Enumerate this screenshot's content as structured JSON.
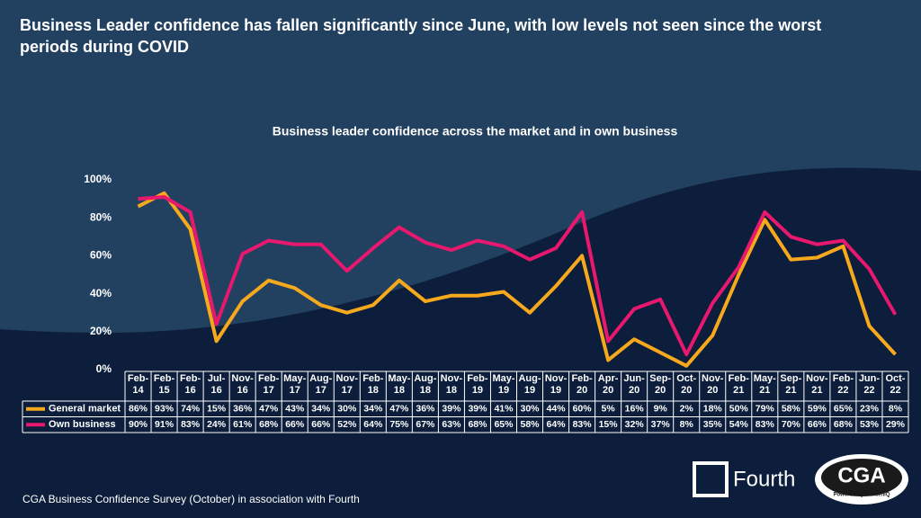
{
  "chart_data": {
    "type": "line",
    "title": "Business Leader confidence has fallen significantly since June, with low levels not seen since the worst periods during COVID",
    "subtitle": "Business leader confidence across the market and in own business",
    "categories": [
      "Feb-14",
      "Feb-15",
      "Feb-16",
      "Jul-16",
      "Nov-16",
      "Feb-17",
      "May-17",
      "Aug-17",
      "Nov-17",
      "Feb-18",
      "May-18",
      "Aug-18",
      "Nov-18",
      "Feb-19",
      "May-19",
      "Aug-19",
      "Nov-19",
      "Feb-20",
      "Apr-20",
      "Jun-20",
      "Sep-20",
      "Oct-20",
      "Nov-20",
      "Feb-21",
      "May-21",
      "Sep-21",
      "Nov-21",
      "Feb-22",
      "Jun-22",
      "Oct-22"
    ],
    "series": [
      {
        "name": "General market",
        "color": "#f7a91d",
        "values": [
          86,
          93,
          74,
          15,
          36,
          47,
          43,
          34,
          30,
          34,
          47,
          36,
          39,
          39,
          41,
          30,
          44,
          60,
          5,
          16,
          9,
          2,
          18,
          50,
          79,
          58,
          59,
          65,
          23,
          8
        ],
        "value_labels": [
          "86%",
          "93%",
          "74%",
          "15%",
          "36%",
          "47%",
          "43%",
          "34%",
          "30%",
          "34%",
          "47%",
          "36%",
          "39%",
          "39%",
          "41%",
          "30%",
          "44%",
          "60%",
          "5%",
          "16%",
          "9%",
          "2%",
          "18%",
          "50%",
          "79%",
          "58%",
          "59%",
          "65%",
          "23%",
          "8%"
        ]
      },
      {
        "name": "Own business",
        "color": "#e8186f",
        "values": [
          90,
          91,
          83,
          24,
          61,
          68,
          66,
          66,
          52,
          64,
          75,
          67,
          63,
          68,
          65,
          58,
          64,
          83,
          15,
          32,
          37,
          8,
          35,
          54,
          83,
          70,
          66,
          68,
          53,
          29
        ],
        "value_labels": [
          "90%",
          "91%",
          "83%",
          "24%",
          "61%",
          "68%",
          "66%",
          "66%",
          "52%",
          "64%",
          "75%",
          "67%",
          "63%",
          "68%",
          "65%",
          "58%",
          "64%",
          "83%",
          "15%",
          "32%",
          "37%",
          "8%",
          "35%",
          "54%",
          "83%",
          "70%",
          "66%",
          "68%",
          "53%",
          "29%"
        ]
      }
    ],
    "ylim": [
      0,
      100
    ],
    "yticks": [
      {
        "value": 0,
        "label": "0%"
      },
      {
        "value": 20,
        "label": "20%"
      },
      {
        "value": 40,
        "label": "40%"
      },
      {
        "value": 60,
        "label": "60%"
      },
      {
        "value": 80,
        "label": "80%"
      },
      {
        "value": 100,
        "label": "100%"
      }
    ],
    "source": "CGA Business Confidence Survey (October) in association with Fourth"
  },
  "logos": {
    "fourth": "Fourth",
    "cga": "CGA",
    "cga_tagline": "Powered by NielsenIQ"
  }
}
